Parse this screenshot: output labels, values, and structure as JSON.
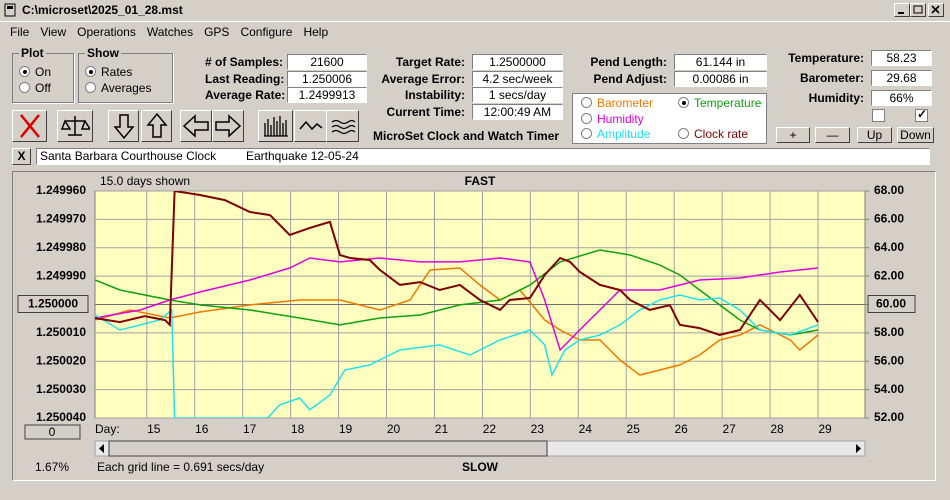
{
  "window": {
    "title": "C:\\microset\\2025_01_28.mst"
  },
  "menu": [
    "File",
    "View",
    "Operations",
    "Watches",
    "GPS",
    "Configure",
    "Help"
  ],
  "plot_group": {
    "title": "Plot",
    "options": [
      {
        "label": "On",
        "checked": true
      },
      {
        "label": "Off",
        "checked": false
      }
    ]
  },
  "show_group": {
    "title": "Show",
    "options": [
      {
        "label": "Rates",
        "checked": true
      },
      {
        "label": "Averages",
        "checked": false
      }
    ]
  },
  "fields_1": [
    {
      "label": "# of Samples:",
      "value": "21600"
    },
    {
      "label": "Last Reading:",
      "value": "1.250006"
    },
    {
      "label": "Average Rate:",
      "value": "1.2499913"
    }
  ],
  "fields_2": [
    {
      "label": "Target Rate:",
      "value": "1.2500000"
    },
    {
      "label": "Average Error:",
      "value": "4.2 sec/week"
    },
    {
      "label": "Instability:",
      "value": "1 secs/day"
    },
    {
      "label": "Current Time:",
      "value": "12:00:49 AM"
    }
  ],
  "fields_3": [
    {
      "label": "Pend Length:",
      "value": "61.144 in"
    },
    {
      "label": "Pend Adjust:",
      "value": "0.00086 in"
    }
  ],
  "fields_4": [
    {
      "label": "Temperature:",
      "value": "58.23"
    },
    {
      "label": "Barometer:",
      "value": "29.68"
    },
    {
      "label": "Humidity:",
      "value": "66%"
    }
  ],
  "app_title": "MicroSet Clock and Watch Timer",
  "checkboxes": [
    {
      "checked": false
    },
    {
      "checked": true
    }
  ],
  "buttons": [
    "+",
    "—",
    "Up",
    "Down"
  ],
  "note": {
    "close": "X",
    "clock": "Santa Barbara Courthouse Clock",
    "event": "Earthquake 12-05-24"
  },
  "chart_data": {
    "type": "line",
    "days_shown": "15.0 days shown",
    "top_label": "FAST",
    "bottom_label": "SLOW",
    "grid_note": "Each grid line = 0.691 secs/day",
    "zoom": "1.67%",
    "offset_button": "0",
    "xlabel": "Day:",
    "background": "#ffffc0",
    "grid": true,
    "xlim": [
      13.92,
      29.98
    ],
    "xticks": [
      15,
      16,
      17,
      18,
      19,
      20,
      21,
      22,
      23,
      24,
      25,
      26,
      27,
      28,
      29
    ],
    "ylim": [
      1.25004,
      1.24996
    ],
    "yticks": [
      {
        "value": 1.24996,
        "label": "1.249960"
      },
      {
        "value": 1.24997,
        "label": "1.249970"
      },
      {
        "value": 1.24998,
        "label": "1.249980"
      },
      {
        "value": 1.24999,
        "label": "1.249990"
      },
      {
        "value": 1.25,
        "label": "1.250000"
      },
      {
        "value": 1.25001,
        "label": "1.250010"
      },
      {
        "value": 1.25002,
        "label": "1.250020"
      },
      {
        "value": 1.25003,
        "label": "1.250030"
      },
      {
        "value": 1.25004,
        "label": "1.250040"
      }
    ],
    "y2lim": [
      52,
      68
    ],
    "y2ticks": [
      {
        "value": 68,
        "label": "68.00"
      },
      {
        "value": 66,
        "label": "66.00"
      },
      {
        "value": 64,
        "label": "64.00"
      },
      {
        "value": 62,
        "label": "62.00"
      },
      {
        "value": 60,
        "label": "60.00"
      },
      {
        "value": 58,
        "label": "58.00"
      },
      {
        "value": 56,
        "label": "56.00"
      },
      {
        "value": 54,
        "label": "54.00"
      },
      {
        "value": 52,
        "label": "52.00"
      }
    ],
    "series": [
      {
        "name": "Barometer",
        "color": "#f07800",
        "axis": "y2",
        "checked": false,
        "x": [
          13.92,
          14.65,
          15.48,
          16.11,
          17.15,
          18.19,
          19.03,
          19.86,
          20.49,
          20.91,
          21.53,
          21.95,
          22.37,
          22.78,
          23.3,
          23.62,
          24.03,
          24.45,
          24.87,
          25.28,
          25.7,
          26.12,
          26.53,
          26.95,
          27.37,
          27.79,
          28.42,
          28.62,
          29.0
        ],
        "values": [
          58.91,
          59.61,
          59.05,
          59.47,
          59.97,
          60.32,
          60.32,
          59.61,
          60.32,
          62.43,
          62.57,
          61.37,
          60.32,
          61.02,
          58.91,
          58.2,
          57.5,
          57.5,
          56.09,
          55.03,
          55.38,
          55.74,
          56.44,
          57.5,
          57.85,
          58.56,
          57.5,
          56.79,
          57.85
        ]
      },
      {
        "name": "Temperature",
        "color": "#10a010",
        "axis": "y2",
        "checked": true,
        "x": [
          13.92,
          14.44,
          15.48,
          16.11,
          17.15,
          18.19,
          19.03,
          19.86,
          20.7,
          21.53,
          22.37,
          22.99,
          23.62,
          24.45,
          25.08,
          25.7,
          26.12,
          26.53,
          26.95,
          27.37,
          27.79,
          28.42,
          29.0
        ],
        "values": [
          61.73,
          61.02,
          60.32,
          59.97,
          59.61,
          59.05,
          58.56,
          59.05,
          59.26,
          59.97,
          60.32,
          61.37,
          63.0,
          63.84,
          63.49,
          62.78,
          62.08,
          61.02,
          59.97,
          58.91,
          58.2,
          57.85,
          58.2
        ]
      },
      {
        "name": "Humidity",
        "color": "#e000e0",
        "axis": "y2",
        "checked": false,
        "x": [
          13.92,
          14.86,
          15.48,
          16.11,
          17.15,
          17.98,
          18.4,
          19.03,
          19.86,
          20.7,
          21.53,
          22.37,
          22.99,
          23.3,
          23.62,
          24.03,
          24.45,
          24.87,
          25.28,
          25.7,
          26.53,
          27.37,
          28.21,
          29.0
        ],
        "values": [
          59.05,
          59.61,
          60.32,
          60.88,
          61.73,
          62.57,
          63.28,
          63.0,
          63.28,
          63.0,
          63.0,
          63.28,
          63.0,
          60.32,
          56.79,
          58.2,
          59.61,
          61.02,
          61.02,
          61.02,
          61.73,
          61.87,
          62.29,
          62.57
        ]
      },
      {
        "name": "Amplitude",
        "color": "#20e0f0",
        "axis": "y2",
        "checked": false,
        "x": [
          13.92,
          14.44,
          15.27,
          15.52,
          15.58,
          17.52,
          17.77,
          18.19,
          18.4,
          18.82,
          19.13,
          19.65,
          20.28,
          21.11,
          21.74,
          22.37,
          22.99,
          23.3,
          23.45,
          23.72,
          24.03,
          24.45,
          24.87,
          25.28,
          25.7,
          26.12,
          26.53,
          26.95,
          27.37,
          27.79,
          28.42,
          29.0
        ],
        "values": [
          59.26,
          58.2,
          58.91,
          59.61,
          52.0,
          52.0,
          52.92,
          53.41,
          52.57,
          53.62,
          55.38,
          55.74,
          56.79,
          57.15,
          56.44,
          57.5,
          58.2,
          57.15,
          55.03,
          56.79,
          57.5,
          57.85,
          58.56,
          59.61,
          60.32,
          60.67,
          60.32,
          60.46,
          59.61,
          58.2,
          57.85,
          58.56
        ]
      },
      {
        "name": "Clock rate",
        "color": "#800000",
        "axis": "y",
        "checked": false,
        "x": [
          13.92,
          14.44,
          14.96,
          15.38,
          15.48,
          15.58,
          16.11,
          16.63,
          17.15,
          17.57,
          17.98,
          18.4,
          18.82,
          19.03,
          19.24,
          19.65,
          19.86,
          20.28,
          20.7,
          21.11,
          21.53,
          21.95,
          22.37,
          22.57,
          22.99,
          23.3,
          23.62,
          23.83,
          24.03,
          24.45,
          24.87,
          25.08,
          25.49,
          25.91,
          26.12,
          26.53,
          26.95,
          27.37,
          27.79,
          28.21,
          28.62,
          28.83,
          29.0
        ],
        "values": [
          1.2500048,
          1.2500062,
          1.2500041,
          1.2500055,
          1.2500072,
          1.24996,
          1.2499614,
          1.2499632,
          1.2499674,
          1.2499685,
          1.2499755,
          1.249973,
          1.2499709,
          1.2499826,
          1.2499836,
          1.2499843,
          1.2499878,
          1.2499931,
          1.2499921,
          1.2499949,
          1.2499931,
          1.2499984,
          1.2500019,
          1.2499984,
          1.2499977,
          1.2499896,
          1.2499836,
          1.249985,
          1.2499885,
          1.2499931,
          1.2499949,
          1.2499984,
          1.2500019,
          1.2500002,
          1.2500072,
          1.2500083,
          1.2500107,
          1.250009,
          1.2499984,
          1.2500055,
          1.2499966,
          1.2500019,
          1.2500062
        ]
      }
    ]
  }
}
